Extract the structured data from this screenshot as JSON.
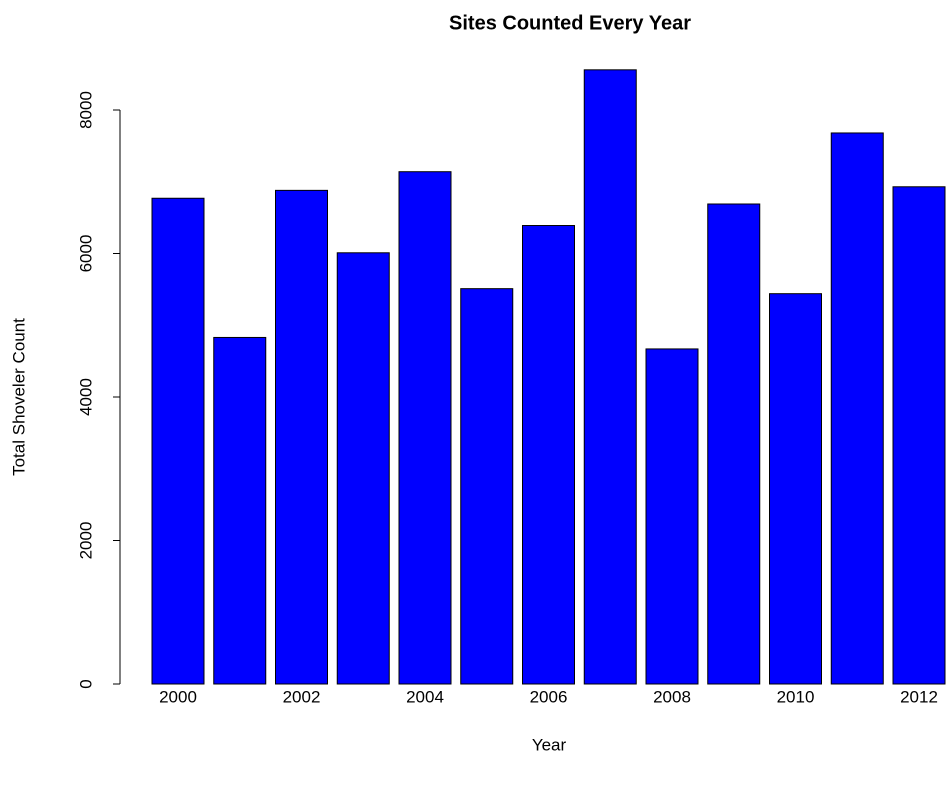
{
  "chart_data": {
    "type": "bar",
    "title": "Sites Counted Every Year",
    "x_label": "Year",
    "y_label": "Total Shoveler Count",
    "categories": [
      "2000",
      null,
      "2002",
      null,
      "2004",
      null,
      "2006",
      null,
      "2008",
      null,
      "2010",
      null,
      "2012"
    ],
    "values": [
      6770,
      4830,
      6880,
      6010,
      7140,
      5510,
      6390,
      8560,
      4670,
      6690,
      5440,
      7680,
      6930
    ],
    "color": "#0000ff",
    "ylim": [
      0,
      9000
    ],
    "yticks": [
      0,
      2000,
      4000,
      6000,
      8000
    ],
    "grid": false
  }
}
